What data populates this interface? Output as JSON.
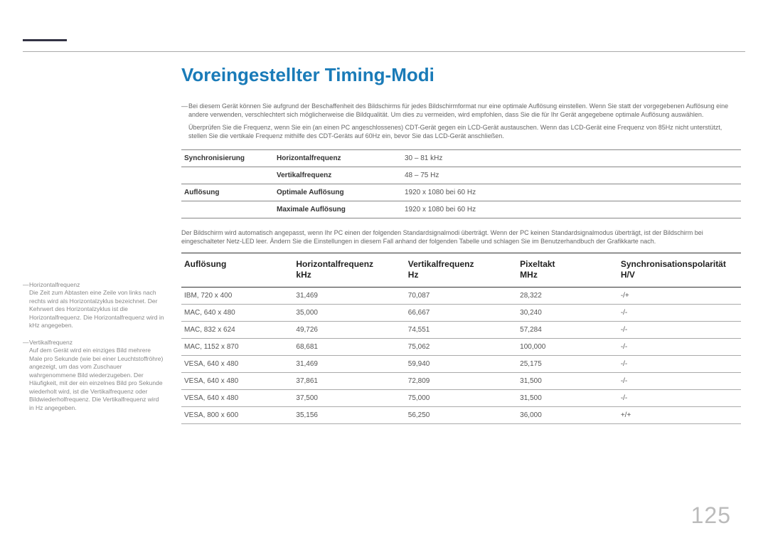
{
  "page_number": "125",
  "title": "Voreingestellter Timing-Modi",
  "intro": {
    "para1": "Bei diesem Gerät können Sie aufgrund der Beschaffenheit des Bildschirms für jedes Bildschirmformat nur eine optimale Auflösung einstellen. Wenn Sie statt der vorgegebenen Auflösung eine andere verwenden, verschlechtert sich möglicherweise die Bildqualität. Um dies zu vermeiden, wird empfohlen, dass Sie die für Ihr Gerät angegebene optimale Auflösung auswählen.",
    "para2": "Überprüfen Sie die Frequenz, wenn Sie ein (an einen PC angeschlossenes) CDT-Gerät gegen ein LCD-Gerät austauschen. Wenn das LCD-Gerät eine Frequenz von 85Hz nicht unterstützt, stellen Sie die vertikale Frequenz mithilfe des CDT-Geräts auf 60Hz ein, bevor Sie das LCD-Gerät anschließen."
  },
  "spec": {
    "rows": [
      {
        "c1": "Synchronisierung",
        "c2": "Horizontalfrequenz",
        "c3": "30 – 81 kHz"
      },
      {
        "c1": "",
        "c2": "Vertikalfrequenz",
        "c3": "48 – 75 Hz"
      },
      {
        "c1": "Auflösung",
        "c2": "Optimale Auflösung",
        "c3": "1920 x 1080 bei 60 Hz"
      },
      {
        "c1": "",
        "c2": "Maximale Auflösung",
        "c3": "1920 x 1080 bei 60 Hz"
      }
    ]
  },
  "mid_para": "Der Bildschirm wird automatisch angepasst, wenn Ihr PC einen der folgenden Standardsignalmodi überträgt. Wenn der PC keinen Standardsignalmodus überträgt, ist der Bildschirm bei eingeschalteter Netz-LED leer. Ändern Sie die Einstellungen in diesem Fall anhand der folgenden Tabelle und schlagen Sie im Benutzerhandbuch der Grafikkarte nach.",
  "timing": {
    "headers": {
      "h1": "Auflösung",
      "h2a": "Horizontalfrequenz",
      "h2b": "kHz",
      "h3a": "Vertikalfrequenz",
      "h3b": "Hz",
      "h4a": "Pixeltakt",
      "h4b": "MHz",
      "h5a": "Synchronisationspolarität",
      "h5b": "H/V"
    },
    "rows": [
      {
        "c1": "IBM, 720 x 400",
        "c2": "31,469",
        "c3": "70,087",
        "c4": "28,322",
        "c5": "-/+"
      },
      {
        "c1": "MAC, 640 x 480",
        "c2": "35,000",
        "c3": "66,667",
        "c4": "30,240",
        "c5": "-/-"
      },
      {
        "c1": "MAC, 832 x 624",
        "c2": "49,726",
        "c3": "74,551",
        "c4": "57,284",
        "c5": "-/-"
      },
      {
        "c1": "MAC, 1152 x 870",
        "c2": "68,681",
        "c3": "75,062",
        "c4": "100,000",
        "c5": "-/-"
      },
      {
        "c1": "VESA, 640 x 480",
        "c2": "31,469",
        "c3": "59,940",
        "c4": "25,175",
        "c5": "-/-"
      },
      {
        "c1": "VESA, 640 x 480",
        "c2": "37,861",
        "c3": "72,809",
        "c4": "31,500",
        "c5": "-/-"
      },
      {
        "c1": "VESA, 640 x 480",
        "c2": "37,500",
        "c3": "75,000",
        "c4": "31,500",
        "c5": "-/-"
      },
      {
        "c1": "VESA, 800 x 600",
        "c2": "35,156",
        "c3": "56,250",
        "c4": "36,000",
        "c5": "+/+"
      }
    ]
  },
  "sidebar": {
    "n1_label": "Horizontalfrequenz",
    "n1_text": "Die Zeit zum Abtasten eine Zeile von links nach rechts wird als Horizontalzyklus bezeichnet. Der Kehrwert des Horizontalzyklus ist die Horizontalfrequenz. Die Horizontalfrequenz wird in kHz angegeben.",
    "n2_label": "Vertikalfrequenz",
    "n2_text": "Auf dem Gerät wird ein einziges Bild mehrere Male pro Sekunde (wie bei einer Leuchtstoffröhre) angezeigt, um das vom Zuschauer wahrgenommene Bild wiederzugeben. Der Häufigkeit, mit der ein einzelnes Bild pro Sekunde wiederholt wird, ist die Vertikalfrequenz oder Bildwiederholfrequenz. Die Vertikalfrequenz wird in Hz angegeben."
  }
}
